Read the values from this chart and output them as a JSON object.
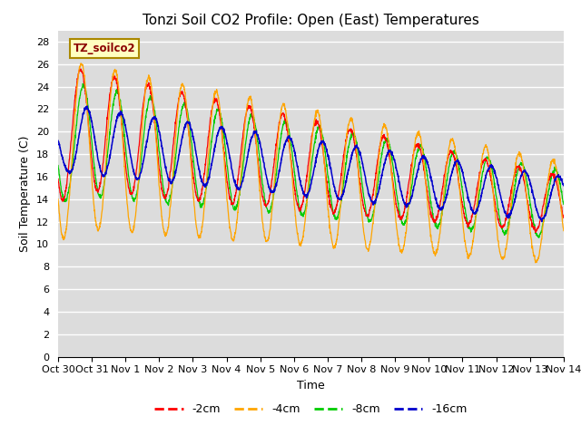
{
  "title": "Tonzi Soil CO2 Profile: Open (East) Temperatures",
  "xlabel": "Time",
  "ylabel": "Soil Temperature (C)",
  "legend_label": "TZ_soilco2",
  "series_labels": [
    "-2cm",
    "-4cm",
    "-8cm",
    "-16cm"
  ],
  "series_colors": [
    "#FF0000",
    "#FFA500",
    "#00CC00",
    "#0000CC"
  ],
  "ylim": [
    0,
    29
  ],
  "yticks": [
    0,
    2,
    4,
    6,
    8,
    10,
    12,
    14,
    16,
    18,
    20,
    22,
    24,
    26,
    28
  ],
  "bg_color": "#DCDCDC",
  "grid_color": "#FFFFFF",
  "title_fontsize": 11,
  "axis_fontsize": 9,
  "tick_fontsize": 8,
  "n_days": 15
}
